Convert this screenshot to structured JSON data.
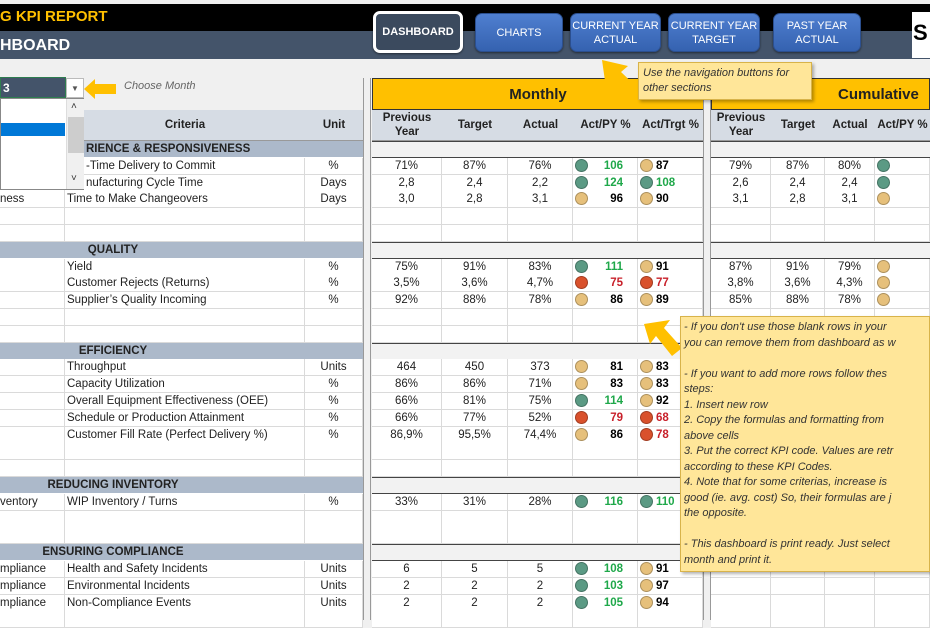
{
  "header": {
    "title": "G KPI REPORT",
    "subtitle": "HBOARD",
    "logo_text": "S"
  },
  "nav": [
    {
      "label": "DASHBOARD",
      "active": true
    },
    {
      "label": "CHARTS"
    },
    {
      "label": "CURRENT YEAR ACTUAL"
    },
    {
      "label": "CURRENT YEAR TARGET"
    },
    {
      "label": "PAST YEAR ACTUAL"
    }
  ],
  "month_selector": {
    "value": "3",
    "hint": "Choose Month"
  },
  "bands": {
    "monthly": "Monthly",
    "cumulative": "Cumulative"
  },
  "columns": {
    "criteria": "Criteria",
    "unit": "Unit",
    "prev": "Previous Year",
    "target": "Target",
    "actual": "Actual",
    "actpy": "Act/PY %",
    "acttrgt": "Act/Trgt %"
  },
  "colors": {
    "green": "#5b9a84",
    "amber": "#e6c07b",
    "red": "#d9512c",
    "green_text": "#1fa84a",
    "red_text": "#c8202a"
  },
  "rows": [
    {
      "type": "section",
      "title": "RIENCE & RESPONSIVENESS"
    },
    {
      "type": "kpi",
      "a": "",
      "criteria": "-Time Delivery to Commit",
      "unit": "%",
      "m": [
        "71%",
        "87%",
        "76%"
      ],
      "py": {
        "v": "106",
        "s": "green"
      },
      "tg": {
        "v": "87",
        "s": "amber"
      },
      "c": [
        "79%",
        "87%",
        "80%"
      ],
      "cs": "green"
    },
    {
      "type": "kpi",
      "a": "",
      "criteria": "nufacturing Cycle Time",
      "unit": "Days",
      "m": [
        "2,8",
        "2,4",
        "2,2"
      ],
      "py": {
        "v": "124",
        "s": "green"
      },
      "tg": {
        "v": "108",
        "s": "green"
      },
      "c": [
        "2,6",
        "2,4",
        "2,4"
      ],
      "cs": "green"
    },
    {
      "type": "kpi",
      "a": "ness",
      "criteria": "Time to Make Changeovers",
      "unit": "Days",
      "m": [
        "3,0",
        "2,8",
        "3,1"
      ],
      "py": {
        "v": "96",
        "s": "amber"
      },
      "tg": {
        "v": "90",
        "s": "amber"
      },
      "c": [
        "3,1",
        "2,8",
        "3,1"
      ],
      "cs": "amber"
    },
    {
      "type": "blank"
    },
    {
      "type": "blank"
    },
    {
      "type": "section",
      "title": "QUALITY"
    },
    {
      "type": "kpi",
      "a": "",
      "criteria": "Yield",
      "unit": "%",
      "m": [
        "75%",
        "91%",
        "83%"
      ],
      "py": {
        "v": "111",
        "s": "green"
      },
      "tg": {
        "v": "91",
        "s": "amber"
      },
      "c": [
        "87%",
        "91%",
        "79%"
      ],
      "cs": "amber"
    },
    {
      "type": "kpi",
      "a": "",
      "criteria": "Customer Rejects (Returns)",
      "unit": "%",
      "m": [
        "3,5%",
        "3,6%",
        "4,7%"
      ],
      "py": {
        "v": "75",
        "s": "red"
      },
      "tg": {
        "v": "77",
        "s": "red"
      },
      "c": [
        "3,8%",
        "3,6%",
        "4,3%"
      ],
      "cs": "amber"
    },
    {
      "type": "kpi",
      "a": "",
      "criteria": "Supplier’s Quality Incoming",
      "unit": "%",
      "m": [
        "92%",
        "88%",
        "78%"
      ],
      "py": {
        "v": "86",
        "s": "amber"
      },
      "tg": {
        "v": "89",
        "s": "amber"
      },
      "c": [
        "85%",
        "88%",
        "78%"
      ],
      "cs": "amber"
    },
    {
      "type": "blank"
    },
    {
      "type": "blank"
    },
    {
      "type": "section",
      "title": "EFFICIENCY"
    },
    {
      "type": "kpi",
      "a": "",
      "criteria": "Throughput",
      "unit": "Units",
      "m": [
        "464",
        "450",
        "373"
      ],
      "py": {
        "v": "81",
        "s": "amber"
      },
      "tg": {
        "v": "83",
        "s": "amber"
      }
    },
    {
      "type": "kpi",
      "a": "",
      "criteria": "Capacity Utilization",
      "unit": "%",
      "m": [
        "86%",
        "86%",
        "71%"
      ],
      "py": {
        "v": "83",
        "s": "amber"
      },
      "tg": {
        "v": "83",
        "s": "amber"
      }
    },
    {
      "type": "kpi",
      "a": "",
      "criteria": "Overall Equipment Effectiveness (OEE)",
      "unit": "%",
      "m": [
        "66%",
        "81%",
        "75%"
      ],
      "py": {
        "v": "114",
        "s": "green"
      },
      "tg": {
        "v": "92",
        "s": "amber"
      }
    },
    {
      "type": "kpi",
      "a": "",
      "criteria": "Schedule or Production Attainment",
      "unit": "%",
      "m": [
        "66%",
        "77%",
        "52%"
      ],
      "py": {
        "v": "79",
        "s": "red"
      },
      "tg": {
        "v": "68",
        "s": "red"
      }
    },
    {
      "type": "kpi",
      "a": "",
      "criteria": "Customer Fill Rate (Perfect Delivery %)",
      "unit": "%",
      "m": [
        "86,9%",
        "95,5%",
        "74,4%"
      ],
      "py": {
        "v": "86",
        "s": "amber"
      },
      "tg": {
        "v": "78",
        "s": "red"
      }
    },
    {
      "type": "blank"
    },
    {
      "type": "blank"
    },
    {
      "type": "section",
      "title": "REDUCING INVENTORY"
    },
    {
      "type": "kpi",
      "a": "ventory",
      "criteria": "WIP Inventory / Turns",
      "unit": "%",
      "m": [
        "33%",
        "31%",
        "28%"
      ],
      "py": {
        "v": "116",
        "s": "green"
      },
      "tg": {
        "v": "110",
        "s": "green"
      }
    },
    {
      "type": "blank"
    },
    {
      "type": "blank"
    },
    {
      "type": "section",
      "title": "ENSURING COMPLIANCE"
    },
    {
      "type": "kpi",
      "a": "mpliance",
      "criteria": "Health and Safety Incidents",
      "unit": "Units",
      "m": [
        "6",
        "5",
        "5"
      ],
      "py": {
        "v": "108",
        "s": "green"
      },
      "tg": {
        "v": "91",
        "s": "amber"
      }
    },
    {
      "type": "kpi",
      "a": "mpliance",
      "criteria": "Environmental Incidents",
      "unit": "Units",
      "m": [
        "2",
        "2",
        "2"
      ],
      "py": {
        "v": "103",
        "s": "green"
      },
      "tg": {
        "v": "97",
        "s": "amber"
      }
    },
    {
      "type": "kpi",
      "a": "mpliance",
      "criteria": "Non-Compliance Events",
      "unit": "Units",
      "m": [
        "2",
        "2",
        "2"
      ],
      "py": {
        "v": "105",
        "s": "green"
      },
      "tg": {
        "v": "94",
        "s": "amber"
      }
    },
    {
      "type": "blank"
    }
  ],
  "tooltips": {
    "nav": "Use the navigation buttons for other sections",
    "notes": [
      "- If you don't use those blank rows in your",
      "you can remove them from dashboard as w",
      "",
      "- If you want to add more rows follow thes",
      "steps:",
      "1. Insert new row",
      "2. Copy the formulas and formatting from",
      "above cells",
      "3. Put the correct KPI code. Values are retr",
      "according to these KPI Codes.",
      "4. Note that for some criterias, increase is",
      "good (ie. avg. cost) So, their formulas are j",
      "the opposite.",
      "",
      "- This dashboard is print ready. Just select",
      "month and print it."
    ]
  }
}
